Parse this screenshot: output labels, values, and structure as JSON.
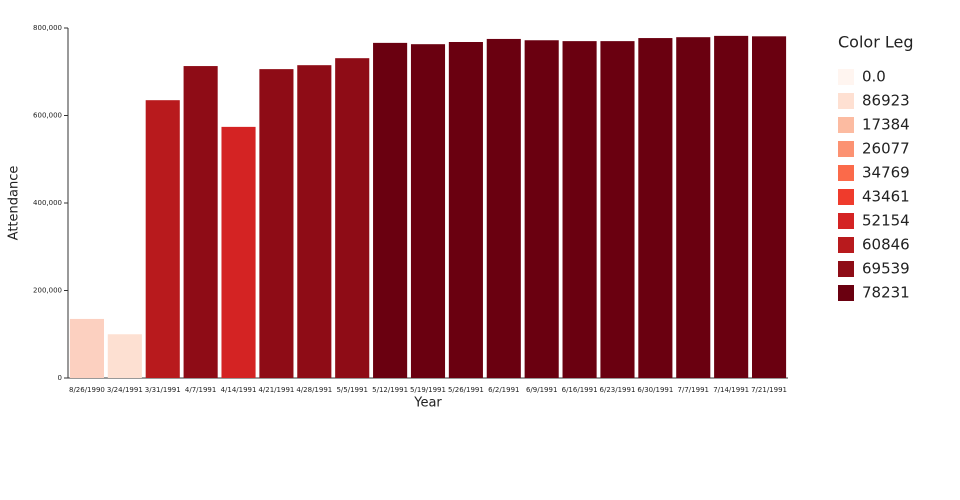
{
  "chart_data": {
    "type": "bar",
    "x_label": "Year",
    "y_label": "Attendance",
    "categories": [
      "8/26/1990",
      "3/24/1991",
      "3/31/1991",
      "4/7/1991",
      "4/14/1991",
      "4/21/1991",
      "4/28/1991",
      "5/5/1991",
      "5/12/1991",
      "5/19/1991",
      "5/26/1991",
      "6/2/1991",
      "6/9/1991",
      "6/16/1991",
      "6/23/1991",
      "6/30/1991",
      "7/7/1991",
      "7/14/1991",
      "7/21/1991"
    ],
    "values": [
      135000,
      100000,
      635000,
      713000,
      574000,
      706000,
      715000,
      731000,
      766000,
      763000,
      768000,
      775000,
      772000,
      770000,
      770000,
      777000,
      779000,
      782000,
      781000
    ],
    "colors": [
      "#fcd0c0",
      "#fde0d2",
      "#b81a1d",
      "#8e0c16",
      "#d42323",
      "#8e0c16",
      "#8e0c16",
      "#8e0c16",
      "#6a0010",
      "#6a0010",
      "#6a0010",
      "#6a0010",
      "#6a0010",
      "#6a0010",
      "#6a0010",
      "#6a0010",
      "#6a0010",
      "#6a0010",
      "#6a0010"
    ],
    "ylim": [
      0,
      800000
    ],
    "yticks": [
      0,
      {
        "value": 200000,
        "label": "200,000"
      },
      {
        "value": 400000,
        "label": "400,000"
      },
      {
        "value": 600000,
        "label": "600,000"
      },
      {
        "value": 800000,
        "label": "800,000"
      }
    ],
    "legend": {
      "title": "Color Leg",
      "entries": [
        {
          "label": "0.0",
          "color": "#fff5f0"
        },
        {
          "label": "86923",
          "color": "#fee0d2"
        },
        {
          "label": "17384",
          "color": "#fcbba1"
        },
        {
          "label": "26077",
          "color": "#fc9272"
        },
        {
          "label": "34769",
          "color": "#fb6a4a"
        },
        {
          "label": "43461",
          "color": "#ef3b2c"
        },
        {
          "label": "52154",
          "color": "#d42323"
        },
        {
          "label": "60846",
          "color": "#b81a1d"
        },
        {
          "label": "69539",
          "color": "#8e0c16"
        },
        {
          "label": "78231",
          "color": "#6a0010"
        }
      ]
    }
  }
}
